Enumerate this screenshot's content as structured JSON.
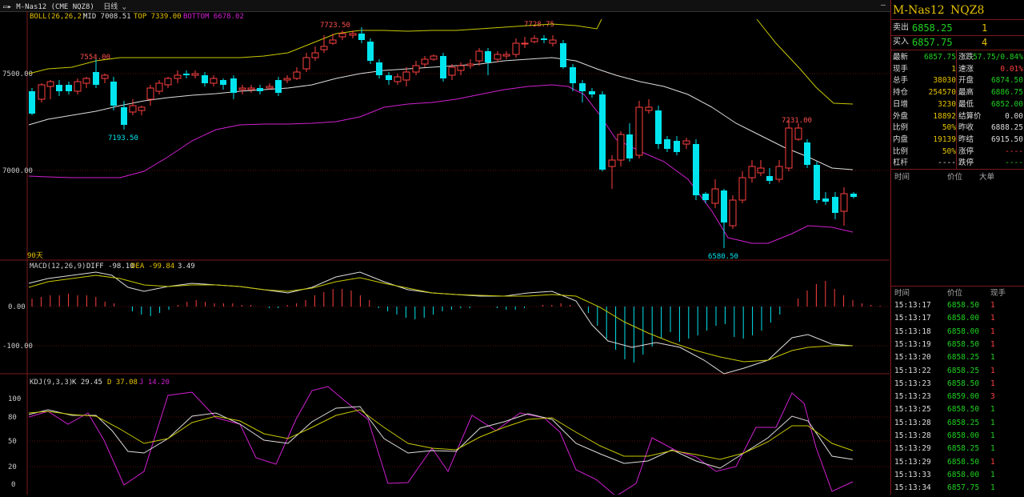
{
  "window": {
    "title": "M-Nas12 (CME NQZ8)",
    "period": "日线"
  },
  "indicators": {
    "boll": {
      "label": "BOLL(26,26,2)",
      "mid": "MID 7008.51",
      "top": "TOP 7339.00",
      "bottom": "BOTTOM 6678.02"
    },
    "macd": {
      "label": "MACD(12,26,9)",
      "diff": "DIFF -98.10",
      "dea": "DEA -99.84",
      "macd": "3.49"
    },
    "kdj": {
      "label": "KDJ(9,3,3)",
      "k": "K 29.45",
      "d": "D 37.08",
      "j": "J 14.20"
    }
  },
  "price_axis": {
    "p7500": "7500.00",
    "p7000": "7000.00"
  },
  "macd_axis": {
    "z": "0.00",
    "m100": "-100.00"
  },
  "kdj_axis": [
    "100",
    "80",
    "50",
    "20",
    "0"
  ],
  "annotations": {
    "a7554": "7554.00",
    "a7193": "7193.50",
    "a7723": "7723.50",
    "a7728": "7728.75",
    "a7231": "7231.00",
    "a6580": "6580.50",
    "days": "90天"
  },
  "quote": {
    "name": "M-Nas12",
    "code": "NQZ8",
    "sell_label": "卖出",
    "sell_price": "6858.25",
    "sell_vol": "1",
    "buy_label": "买入",
    "buy_price": "6857.75",
    "buy_vol": "4",
    "stats": [
      {
        "l1": "最新",
        "v1": "6857.75",
        "c1": "g",
        "l2": "涨跌",
        "v2": "-57.75/0.84%",
        "c2": "g"
      },
      {
        "l1": "现手",
        "v1": "1",
        "c1": "y",
        "l2": "速涨",
        "v2": "0.01%",
        "c2": "r"
      },
      {
        "l1": "总手",
        "v1": "38030",
        "c1": "y",
        "l2": "开盘",
        "v2": "6874.50",
        "c2": "g"
      },
      {
        "l1": "持仓",
        "v1": "254570",
        "c1": "y",
        "l2": "最高",
        "v2": "6886.75",
        "c2": "g"
      },
      {
        "l1": "日增",
        "v1": "3230",
        "c1": "y",
        "l2": "最低",
        "v2": "6852.00",
        "c2": "g"
      },
      {
        "l1": "外盘",
        "v1": "18892",
        "c1": "y",
        "l2": "结算价",
        "v2": "0.00",
        "c2": "w"
      },
      {
        "l1": "比例",
        "v1": "50%",
        "c1": "y",
        "l2": "昨收",
        "v2": "6888.25",
        "c2": "w"
      },
      {
        "l1": "内盘",
        "v1": "19139",
        "c1": "y",
        "l2": "昨结",
        "v2": "6915.50",
        "c2": "w"
      },
      {
        "l1": "比例",
        "v1": "50%",
        "c1": "y",
        "l2": "涨停",
        "v2": "----",
        "c2": "r"
      },
      {
        "l1": "杠杆",
        "v1": "----",
        "c1": "w",
        "l2": "跌停",
        "v2": "----",
        "c2": "g"
      }
    ],
    "big_header": {
      "time": "时间",
      "price": "价位",
      "big": "大单"
    },
    "tick_header": {
      "time": "时间",
      "price": "价位",
      "vol": "现手"
    },
    "ticks": [
      {
        "t": "15:13:17",
        "p": "6858.50",
        "v": "1",
        "c": "r"
      },
      {
        "t": "15:13:17",
        "p": "6858.00",
        "v": "1",
        "c": "r"
      },
      {
        "t": "15:13:18",
        "p": "6858.00",
        "v": "1",
        "c": "r"
      },
      {
        "t": "15:13:19",
        "p": "6858.50",
        "v": "1",
        "c": "r"
      },
      {
        "t": "15:13:20",
        "p": "6858.25",
        "v": "1",
        "c": "g"
      },
      {
        "t": "15:13:22",
        "p": "6858.25",
        "v": "1",
        "c": "r"
      },
      {
        "t": "15:13:23",
        "p": "6858.50",
        "v": "1",
        "c": "r"
      },
      {
        "t": "15:13:23",
        "p": "6859.00",
        "v": "3",
        "c": "r"
      },
      {
        "t": "15:13:25",
        "p": "6858.50",
        "v": "1",
        "c": "g"
      },
      {
        "t": "15:13:28",
        "p": "6858.25",
        "v": "1",
        "c": "g"
      },
      {
        "t": "15:13:28",
        "p": "6858.00",
        "v": "1",
        "c": "g"
      },
      {
        "t": "15:13:29",
        "p": "6858.25",
        "v": "1",
        "c": "g"
      },
      {
        "t": "15:13:29",
        "p": "6858.50",
        "v": "1",
        "c": "r"
      },
      {
        "t": "15:13:33",
        "p": "6858.00",
        "v": "1",
        "c": "g"
      },
      {
        "t": "15:13:34",
        "p": "6857.75",
        "v": "1",
        "c": "g"
      }
    ]
  },
  "colors": {
    "up": "#ff4040",
    "down": "#00e5ee",
    "boll_top": "#c8c800",
    "boll_mid": "#dddddd",
    "boll_bot": "#d020d0",
    "grid": "#7a1a1a"
  }
}
